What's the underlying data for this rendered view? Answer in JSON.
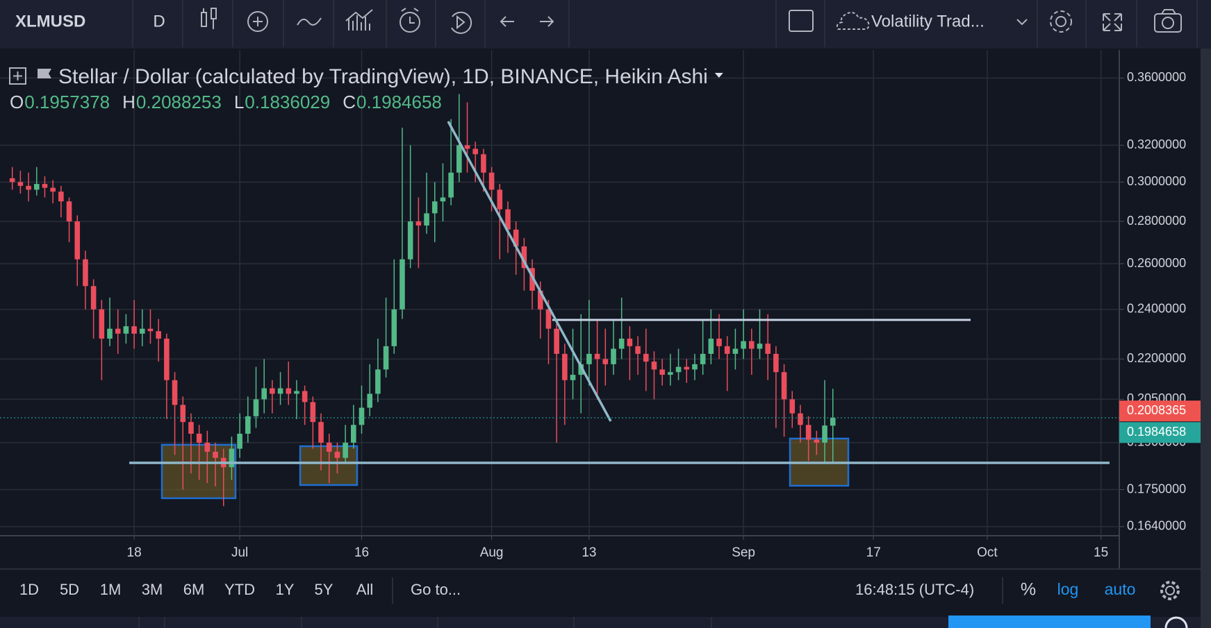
{
  "toolbar": {
    "symbol": "XLMUSD",
    "interval": "D",
    "template": "Volatility Trad..."
  },
  "chart_data": {
    "type": "candlestick",
    "title": "Stellar / Dollar (calculated by TradingView), 1D, BINANCE, Heikin Ashi",
    "ohlc_letters": [
      "O",
      "H",
      "L",
      "C"
    ],
    "x": [
      "06-03",
      "06-04",
      "06-05",
      "06-06",
      "06-07",
      "06-08",
      "06-09",
      "06-10",
      "06-11",
      "06-12",
      "06-13",
      "06-14",
      "06-15",
      "06-16",
      "06-17",
      "06-18",
      "06-19",
      "06-20",
      "06-21",
      "06-22",
      "06-23",
      "06-24",
      "06-25",
      "06-26",
      "06-27",
      "06-28",
      "06-29",
      "06-30",
      "07-01",
      "07-02",
      "07-03",
      "07-04",
      "07-05",
      "07-06",
      "07-07",
      "07-08",
      "07-09",
      "07-10",
      "07-11",
      "07-12",
      "07-13",
      "07-14",
      "07-15",
      "07-16",
      "07-17",
      "07-18",
      "07-19",
      "07-20",
      "07-21",
      "07-22",
      "07-23",
      "07-24",
      "07-25",
      "07-26",
      "07-27",
      "07-28",
      "07-29",
      "07-30",
      "07-31",
      "08-01",
      "08-02",
      "08-03",
      "08-04",
      "08-05",
      "08-06",
      "08-07",
      "08-08",
      "08-09",
      "08-10",
      "08-11",
      "08-12",
      "08-13",
      "08-14",
      "08-15",
      "08-16",
      "08-17",
      "08-18",
      "08-19",
      "08-20",
      "08-21",
      "08-22",
      "08-23",
      "08-24",
      "08-25",
      "08-26",
      "08-27",
      "08-28",
      "08-29",
      "08-30",
      "08-31",
      "09-01",
      "09-02",
      "09-03",
      "09-04",
      "09-05",
      "09-06",
      "09-07",
      "09-08",
      "09-09",
      "09-10",
      "09-11",
      "09-12"
    ],
    "open": [
      0.302,
      0.3,
      0.298,
      0.296,
      0.299,
      0.297,
      0.295,
      0.29,
      0.28,
      0.262,
      0.25,
      0.24,
      0.228,
      0.232,
      0.23,
      0.233,
      0.23,
      0.232,
      0.231,
      0.228,
      0.212,
      0.203,
      0.197,
      0.193,
      0.19,
      0.187,
      0.185,
      0.182,
      0.188,
      0.193,
      0.199,
      0.205,
      0.209,
      0.207,
      0.209,
      0.207,
      0.208,
      0.204,
      0.197,
      0.19,
      0.187,
      0.185,
      0.19,
      0.196,
      0.202,
      0.207,
      0.216,
      0.225,
      0.24,
      0.262,
      0.28,
      0.278,
      0.284,
      0.29,
      0.292,
      0.305,
      0.32,
      0.318,
      0.315,
      0.305,
      0.296,
      0.286,
      0.276,
      0.268,
      0.258,
      0.248,
      0.24,
      0.232,
      0.222,
      0.212,
      0.214,
      0.218,
      0.222,
      0.22,
      0.218,
      0.224,
      0.228,
      0.225,
      0.222,
      0.219,
      0.216,
      0.214,
      0.215,
      0.217,
      0.216,
      0.218,
      0.222,
      0.228,
      0.225,
      0.222,
      0.224,
      0.227,
      0.224,
      0.226,
      0.222,
      0.215,
      0.205,
      0.2,
      0.196,
      0.191,
      0.19,
      0.1957378
    ],
    "high": [
      0.308,
      0.306,
      0.305,
      0.308,
      0.303,
      0.301,
      0.298,
      0.292,
      0.283,
      0.266,
      0.253,
      0.244,
      0.245,
      0.24,
      0.238,
      0.244,
      0.24,
      0.24,
      0.236,
      0.23,
      0.215,
      0.206,
      0.2,
      0.196,
      0.194,
      0.19,
      0.188,
      0.192,
      0.2,
      0.206,
      0.217,
      0.22,
      0.212,
      0.215,
      0.219,
      0.212,
      0.21,
      0.206,
      0.2,
      0.193,
      0.19,
      0.196,
      0.203,
      0.21,
      0.218,
      0.228,
      0.245,
      0.262,
      0.33,
      0.32,
      0.292,
      0.305,
      0.3,
      0.31,
      0.335,
      0.35,
      0.345,
      0.322,
      0.318,
      0.308,
      0.299,
      0.29,
      0.28,
      0.272,
      0.262,
      0.252,
      0.244,
      0.236,
      0.226,
      0.232,
      0.238,
      0.244,
      0.236,
      0.232,
      0.236,
      0.245,
      0.233,
      0.229,
      0.232,
      0.223,
      0.22,
      0.222,
      0.224,
      0.22,
      0.222,
      0.236,
      0.24,
      0.238,
      0.229,
      0.232,
      0.24,
      0.232,
      0.24,
      0.238,
      0.225,
      0.218,
      0.208,
      0.203,
      0.199,
      0.194,
      0.212,
      0.2088253
    ],
    "low": [
      0.296,
      0.294,
      0.29,
      0.293,
      0.292,
      0.289,
      0.282,
      0.27,
      0.25,
      0.24,
      0.228,
      0.212,
      0.225,
      0.222,
      0.226,
      0.224,
      0.225,
      0.226,
      0.219,
      0.198,
      0.186,
      0.175,
      0.18,
      0.178,
      0.177,
      0.176,
      0.17,
      0.178,
      0.185,
      0.19,
      0.195,
      0.2,
      0.2,
      0.203,
      0.203,
      0.198,
      0.196,
      0.188,
      0.181,
      0.177,
      0.18,
      0.183,
      0.188,
      0.193,
      0.199,
      0.204,
      0.213,
      0.222,
      0.236,
      0.258,
      0.258,
      0.274,
      0.27,
      0.28,
      0.288,
      0.3,
      0.305,
      0.3,
      0.295,
      0.285,
      0.262,
      0.265,
      0.255,
      0.248,
      0.24,
      0.228,
      0.218,
      0.19,
      0.196,
      0.205,
      0.2,
      0.21,
      0.205,
      0.21,
      0.214,
      0.22,
      0.212,
      0.214,
      0.208,
      0.205,
      0.21,
      0.21,
      0.212,
      0.211,
      0.212,
      0.214,
      0.218,
      0.22,
      0.208,
      0.216,
      0.22,
      0.214,
      0.22,
      0.212,
      0.195,
      0.192,
      0.195,
      0.19,
      0.184,
      0.186,
      0.183,
      0.1836029
    ],
    "close": [
      0.3,
      0.298,
      0.296,
      0.299,
      0.297,
      0.295,
      0.29,
      0.28,
      0.262,
      0.25,
      0.24,
      0.228,
      0.232,
      0.23,
      0.233,
      0.23,
      0.232,
      0.231,
      0.228,
      0.212,
      0.203,
      0.197,
      0.193,
      0.19,
      0.187,
      0.185,
      0.182,
      0.188,
      0.193,
      0.199,
      0.205,
      0.209,
      0.207,
      0.209,
      0.207,
      0.208,
      0.204,
      0.197,
      0.19,
      0.187,
      0.185,
      0.19,
      0.196,
      0.202,
      0.207,
      0.216,
      0.225,
      0.24,
      0.262,
      0.28,
      0.278,
      0.284,
      0.29,
      0.292,
      0.305,
      0.32,
      0.318,
      0.315,
      0.305,
      0.296,
      0.286,
      0.276,
      0.268,
      0.258,
      0.248,
      0.24,
      0.232,
      0.222,
      0.212,
      0.214,
      0.218,
      0.222,
      0.22,
      0.218,
      0.224,
      0.228,
      0.225,
      0.222,
      0.219,
      0.216,
      0.214,
      0.215,
      0.217,
      0.216,
      0.218,
      0.222,
      0.228,
      0.225,
      0.222,
      0.224,
      0.227,
      0.224,
      0.226,
      0.222,
      0.215,
      0.205,
      0.2,
      0.196,
      0.191,
      0.19,
      0.1958,
      0.1984658
    ],
    "up_color": "#53b987",
    "down_color": "#eb4d5c",
    "log": true,
    "grid": true,
    "ylim": [
      0.1618,
      0.3754
    ],
    "yticks": [
      {
        "value": 0.164,
        "label": "0.1640000"
      },
      {
        "value": 0.175,
        "label": "0.1750000"
      },
      {
        "value": 0.19,
        "label": "0.1900000"
      },
      {
        "value": 0.205,
        "label": "0.2050000"
      },
      {
        "value": 0.22,
        "label": "0.2200000"
      },
      {
        "value": 0.24,
        "label": "0.2400000"
      },
      {
        "value": 0.26,
        "label": "0.2600000"
      },
      {
        "value": 0.28,
        "label": "0.2800000"
      },
      {
        "value": 0.3,
        "label": "0.3000000"
      },
      {
        "value": 0.32,
        "label": "0.3200000"
      },
      {
        "value": 0.36,
        "label": "0.3600000"
      }
    ],
    "xlim": [
      "06-02",
      "10-17"
    ],
    "xticks": [
      {
        "value": "06-18",
        "label": "18"
      },
      {
        "value": "07-01",
        "label": "Jul"
      },
      {
        "value": "07-16",
        "label": "16"
      },
      {
        "value": "08-01",
        "label": "Aug"
      },
      {
        "value": "08-13",
        "label": "13"
      },
      {
        "value": "09-01",
        "label": "Sep"
      },
      {
        "value": "09-17",
        "label": "17"
      },
      {
        "value": "10-01",
        "label": "Oct"
      },
      {
        "value": "10-15",
        "label": "15"
      }
    ],
    "price_markers": [
      {
        "value": 0.2008365,
        "color": "#ef5350"
      },
      {
        "value": 0.1984658,
        "color": "#26a69a"
      }
    ]
  },
  "bottom_bar": {
    "ranges": [
      "1D",
      "5D",
      "1M",
      "3M",
      "6M",
      "YTD",
      "1Y",
      "5Y",
      "All"
    ],
    "goto": "Go to...",
    "time": "16:48:15 (UTC-4)",
    "percent": "%",
    "log": "log",
    "auto": "auto"
  }
}
